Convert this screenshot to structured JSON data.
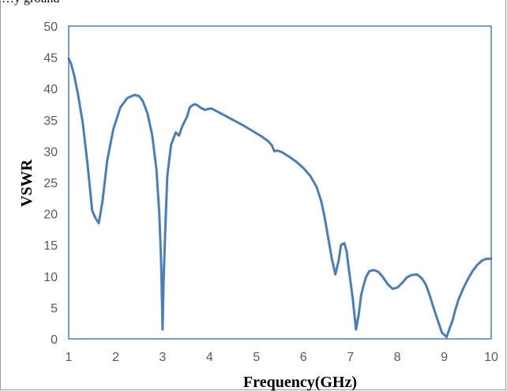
{
  "top_caption": "…y ground",
  "chart_data": {
    "type": "line",
    "title": "",
    "xlabel": "Frequency(GHz)",
    "ylabel": "VSWR",
    "xlim": [
      1,
      10
    ],
    "ylim": [
      0,
      50
    ],
    "xticks": [
      1,
      2,
      3,
      4,
      5,
      6,
      7,
      8,
      9,
      10
    ],
    "yticks": [
      0,
      5,
      10,
      15,
      20,
      25,
      30,
      35,
      40,
      45,
      50
    ],
    "grid": false,
    "legend": "none",
    "line_color": "#4a7ebb",
    "series": [
      {
        "x": [
          1.0,
          1.05,
          1.12,
          1.2,
          1.3,
          1.4,
          1.5,
          1.57,
          1.64,
          1.72,
          1.82,
          1.95,
          2.1,
          2.25,
          2.4,
          2.5,
          2.58,
          2.68,
          2.78,
          2.87,
          2.93,
          2.97,
          3.0,
          3.02,
          3.06,
          3.1,
          3.18,
          3.28,
          3.35,
          3.42,
          3.52,
          3.58,
          3.63,
          3.68,
          3.73,
          3.8,
          3.9,
          4.0,
          4.05,
          4.15,
          4.3,
          4.5,
          4.7,
          4.9,
          5.1,
          5.25,
          5.33,
          5.38,
          5.45,
          5.55,
          5.7,
          5.85,
          6.0,
          6.15,
          6.28,
          6.38,
          6.45,
          6.52,
          6.6,
          6.68,
          6.75,
          6.8,
          6.87,
          6.92,
          6.97,
          7.05,
          7.12,
          7.18,
          7.23,
          7.28,
          7.33,
          7.4,
          7.5,
          7.6,
          7.7,
          7.8,
          7.9,
          8.0,
          8.1,
          8.2,
          8.3,
          8.42,
          8.52,
          8.6,
          8.68,
          8.75,
          8.85,
          8.95,
          9.05,
          9.12,
          9.18,
          9.23,
          9.3,
          9.4,
          9.5,
          9.6,
          9.7,
          9.8,
          9.9,
          10.0
        ],
        "values": [
          44.8,
          44.0,
          42.0,
          39.0,
          34.5,
          28.0,
          20.5,
          19.3,
          18.5,
          22.0,
          28.5,
          33.5,
          37.0,
          38.5,
          39.0,
          38.8,
          38.0,
          36.0,
          32.5,
          27.0,
          20.0,
          12.0,
          1.5,
          9.0,
          18.0,
          26.0,
          31.0,
          33.0,
          32.5,
          34.0,
          35.5,
          37.0,
          37.3,
          37.5,
          37.4,
          37.0,
          36.6,
          36.8,
          36.8,
          36.4,
          35.8,
          35.0,
          34.2,
          33.3,
          32.4,
          31.6,
          30.9,
          30.0,
          30.1,
          29.8,
          29.1,
          28.3,
          27.3,
          26.0,
          24.3,
          22.0,
          19.5,
          16.5,
          13.0,
          10.3,
          12.5,
          15.0,
          15.3,
          14.0,
          11.0,
          6.5,
          1.5,
          4.0,
          7.0,
          8.5,
          9.8,
          10.8,
          11.0,
          10.7,
          9.8,
          8.7,
          8.0,
          8.2,
          8.9,
          9.8,
          10.2,
          10.3,
          9.7,
          8.8,
          7.2,
          5.5,
          3.2,
          1.0,
          0.3,
          1.8,
          3.0,
          4.5,
          6.2,
          8.0,
          9.5,
          10.8,
          11.8,
          12.5,
          12.8,
          12.8
        ],
        "comment_values_end": "series ends near 12.5 at x=10"
      }
    ]
  }
}
